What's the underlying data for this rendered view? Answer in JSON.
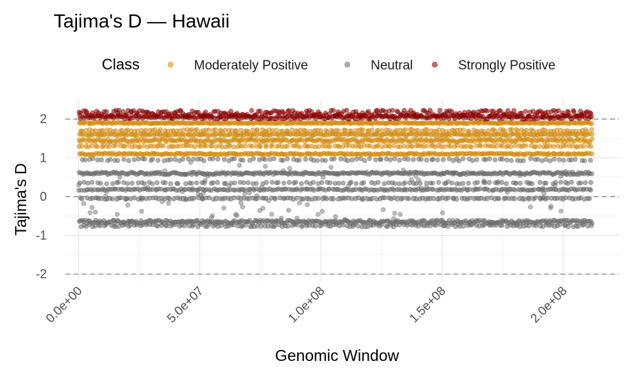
{
  "chart_data": {
    "type": "scatter",
    "title": "Tajima's D — Hawaii",
    "xlabel": "Genomic Window",
    "ylabel": "Tajima's D",
    "xlim": [
      -5500000,
      223000000
    ],
    "ylim": [
      -2.2,
      2.5
    ],
    "x_ticks": [
      0,
      50000000,
      100000000,
      150000000,
      200000000
    ],
    "x_tick_labels": [
      "0.0e+00",
      "5.0e+07",
      "1.0e+08",
      "1.5e+08",
      "2.0e+08"
    ],
    "y_ticks": [
      -2,
      -1,
      0,
      1,
      2
    ],
    "y_tick_labels": [
      "-2",
      "-1",
      "0",
      "1",
      "2"
    ],
    "x_range": [
      0,
      212000000
    ],
    "reference_lines": [
      -2,
      0,
      2
    ],
    "grid": true,
    "legend": {
      "title": "Class",
      "position": "top",
      "entries": [
        {
          "label": "Moderately Positive",
          "color": "#D4890B"
        },
        {
          "label": "Neutral",
          "color": "#6B6B6B"
        },
        {
          "label": "Strongly Positive",
          "color": "#8B0000"
        }
      ]
    },
    "series": [
      {
        "name": "Strongly Positive",
        "color": "#8B0000",
        "bands": [
          {
            "y": 2.05,
            "spread": 0.05,
            "density": 1.0
          },
          {
            "y": 2.15,
            "spread": 0.08,
            "density": 0.8
          }
        ]
      },
      {
        "name": "Moderately Positive",
        "color": "#D4890B",
        "bands": [
          {
            "y": 1.9,
            "spread": 0.02,
            "density": 1.0
          },
          {
            "y": 1.7,
            "spread": 0.03,
            "density": 0.5
          },
          {
            "y": 1.6,
            "spread": 0.02,
            "density": 0.8
          },
          {
            "y": 1.45,
            "spread": 0.04,
            "density": 0.9
          },
          {
            "y": 1.3,
            "spread": 0.02,
            "density": 0.5
          },
          {
            "y": 1.1,
            "spread": 0.02,
            "density": 0.9
          }
        ]
      },
      {
        "name": "Neutral",
        "color": "#6B6B6B",
        "bands": [
          {
            "y": 0.95,
            "spread": 0.03,
            "density": 0.35
          },
          {
            "y": 0.6,
            "spread": 0.03,
            "density": 1.0
          },
          {
            "y": 0.35,
            "spread": 0.02,
            "density": 0.35
          },
          {
            "y": 0.18,
            "spread": 0.02,
            "density": 0.7
          },
          {
            "y": -0.05,
            "spread": 0.02,
            "density": 0.5
          },
          {
            "y": -0.65,
            "spread": 0.04,
            "density": 1.0
          },
          {
            "y": -0.75,
            "spread": 0.03,
            "density": 0.5
          }
        ]
      }
    ]
  }
}
